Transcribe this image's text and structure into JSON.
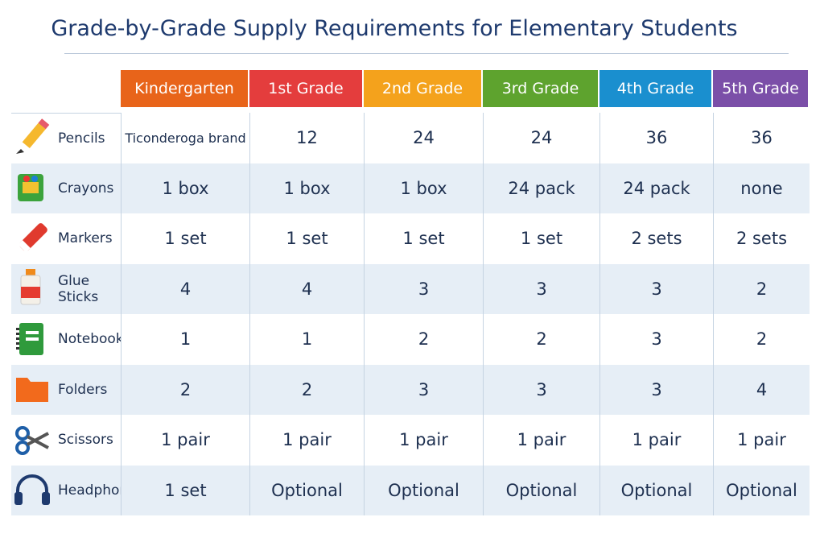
{
  "title": "Grade-by-Grade Supply Requirements for Elementary Students",
  "table": {
    "columns": [
      "Kindergarten",
      "1st Grade",
      "2nd Grade",
      "3rd Grade",
      "4th Grade",
      "5th Grade"
    ],
    "rows": [
      {
        "label": "Pencils",
        "cells": [
          "Ticonderoga brand",
          "12",
          "24",
          "24",
          "36",
          "36"
        ]
      },
      {
        "label": "Crayons",
        "cells": [
          "1 box",
          "1 box",
          "1 box",
          "24 pack",
          "24 pack",
          "none"
        ]
      },
      {
        "label": "Markers",
        "cells": [
          "1 set",
          "1 set",
          "1 set",
          "1 set",
          "2 sets",
          "2 sets"
        ]
      },
      {
        "label": "Glue Sticks",
        "cells": [
          "4",
          "4",
          "3",
          "3",
          "3",
          "2"
        ]
      },
      {
        "label": "Notebooks",
        "cells": [
          "1",
          "1",
          "2",
          "2",
          "3",
          "2"
        ]
      },
      {
        "label": "Folders",
        "cells": [
          "2",
          "2",
          "3",
          "3",
          "3",
          "4"
        ]
      },
      {
        "label": "Scissors",
        "cells": [
          "1 pair",
          "1 pair",
          "1 pair",
          "1 pair",
          "1 pair",
          "1 pair"
        ]
      },
      {
        "label": "Headphones",
        "cells": [
          "1 set",
          "Optional",
          "Optional",
          "Optional",
          "Optional",
          "Optional"
        ]
      }
    ]
  }
}
